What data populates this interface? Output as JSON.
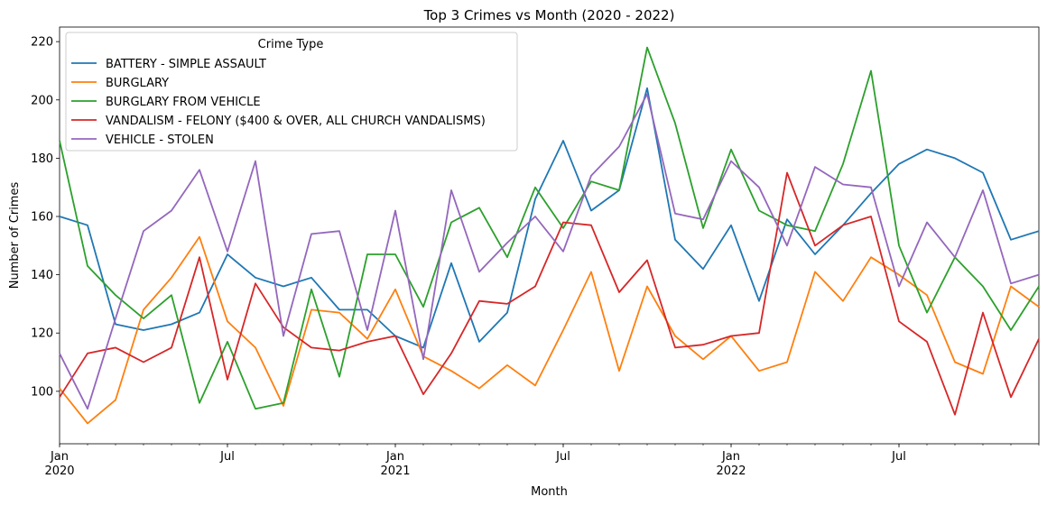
{
  "chart_data": {
    "type": "line",
    "title": "Top 3 Crimes vs Month (2020 - 2022)",
    "xlabel": "Month",
    "ylabel": "Number of Crimes",
    "ylim": [
      82,
      225
    ],
    "yticks": [
      100,
      120,
      140,
      160,
      180,
      200,
      220
    ],
    "x_tick_labels": [
      {
        "index": 0,
        "lines": [
          "Jan",
          "2020"
        ]
      },
      {
        "index": 6,
        "lines": [
          "Jul"
        ]
      },
      {
        "index": 12,
        "lines": [
          "Jan",
          "2021"
        ]
      },
      {
        "index": 18,
        "lines": [
          "Jul"
        ]
      },
      {
        "index": 24,
        "lines": [
          "Jan",
          "2022"
        ]
      },
      {
        "index": 30,
        "lines": [
          "Jul"
        ]
      }
    ],
    "x": [
      "2020-01",
      "2020-02",
      "2020-03",
      "2020-04",
      "2020-05",
      "2020-06",
      "2020-07",
      "2020-08",
      "2020-09",
      "2020-10",
      "2020-11",
      "2020-12",
      "2021-01",
      "2021-02",
      "2021-03",
      "2021-04",
      "2021-05",
      "2021-06",
      "2021-07",
      "2021-08",
      "2021-09",
      "2021-10",
      "2021-11",
      "2021-12",
      "2022-01",
      "2022-02",
      "2022-03",
      "2022-04",
      "2022-05",
      "2022-06",
      "2022-07",
      "2022-08",
      "2022-09",
      "2022-10",
      "2022-11",
      "2022-12"
    ],
    "legend_title": "Crime Type",
    "legend_position": "upper-left",
    "series": [
      {
        "name": "BATTERY - SIMPLE ASSAULT",
        "color": "#1f77b4",
        "values": [
          160,
          157,
          123,
          121,
          123,
          127,
          147,
          139,
          136,
          139,
          128,
          128,
          119,
          115,
          144,
          117,
          127,
          166,
          186,
          162,
          169,
          204,
          152,
          142,
          157,
          131,
          159,
          147,
          157,
          168,
          178,
          183,
          180,
          175,
          152,
          155
        ]
      },
      {
        "name": "BURGLARY",
        "color": "#ff7f0e",
        "values": [
          101,
          89,
          97,
          128,
          139,
          153,
          124,
          115,
          95,
          128,
          127,
          118,
          135,
          112,
          107,
          101,
          109,
          102,
          121,
          141,
          107,
          136,
          119,
          111,
          119,
          107,
          110,
          141,
          131,
          146,
          140,
          133,
          110,
          106,
          136,
          129
        ]
      },
      {
        "name": "BURGLARY FROM VEHICLE",
        "color": "#2ca02c",
        "values": [
          186,
          143,
          133,
          125,
          133,
          96,
          117,
          94,
          96,
          135,
          105,
          147,
          147,
          129,
          158,
          163,
          146,
          170,
          156,
          172,
          169,
          218,
          192,
          156,
          183,
          162,
          157,
          155,
          178,
          210,
          150,
          127,
          146,
          136,
          121,
          136
        ]
      },
      {
        "name": "VANDALISM - FELONY ($400 & OVER, ALL CHURCH VANDALISMS)",
        "color": "#d62728",
        "values": [
          98,
          113,
          115,
          110,
          115,
          146,
          104,
          137,
          122,
          115,
          114,
          117,
          119,
          99,
          113,
          131,
          130,
          136,
          158,
          157,
          134,
          145,
          115,
          116,
          119,
          120,
          175,
          150,
          157,
          160,
          124,
          117,
          92,
          127,
          98,
          118
        ]
      },
      {
        "name": "VEHICLE - STOLEN",
        "color": "#9467bd",
        "values": [
          113,
          94,
          125,
          155,
          162,
          176,
          148,
          179,
          119,
          154,
          155,
          121,
          162,
          111,
          169,
          141,
          151,
          160,
          148,
          174,
          184,
          202,
          161,
          159,
          179,
          170,
          150,
          177,
          171,
          170,
          136,
          158,
          146,
          169,
          137,
          140
        ]
      }
    ]
  }
}
